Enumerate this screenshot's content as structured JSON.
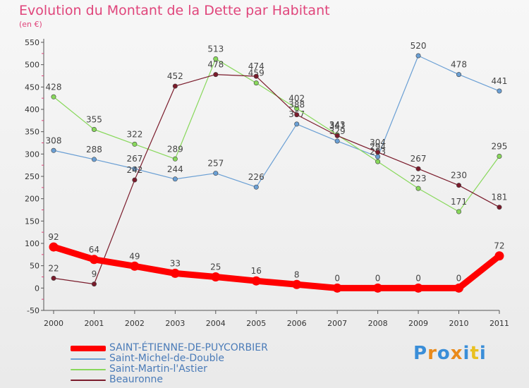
{
  "chart_data": {
    "type": "line",
    "title": "Evolution du Montant de la Dette par Habitant",
    "subtitle": "(en €)",
    "x": [
      "2000",
      "2001",
      "2002",
      "2003",
      "2004",
      "2005",
      "2006",
      "2007",
      "2008",
      "2009",
      "2010",
      "2011"
    ],
    "ylim": [
      -50,
      550
    ],
    "yticks": [
      -50,
      0,
      50,
      100,
      150,
      200,
      250,
      300,
      350,
      400,
      450,
      500,
      550
    ],
    "grid": false,
    "legend_position": "bottom-left",
    "series": [
      {
        "name": "SAINT-ÉTIENNE-DE-PUYCORBIER",
        "color": "#ff0000",
        "values": [
          92,
          64,
          49,
          33,
          25,
          16,
          8,
          0,
          0,
          0,
          0,
          72
        ]
      },
      {
        "name": "Saint-Michel-de-Double",
        "color": "#6a9fd4",
        "values": [
          308,
          288,
          267,
          244,
          257,
          226,
          367,
          329,
          294,
          520,
          478,
          441
        ]
      },
      {
        "name": "Saint-Martin-l'Astier",
        "color": "#88d85b",
        "values": [
          428,
          355,
          322,
          289,
          513,
          459,
          402,
          343,
          283,
          223,
          171,
          295
        ]
      },
      {
        "name": "Beauronne",
        "color": "#7a1b2b",
        "values": [
          22,
          9,
          242,
          452,
          478,
          474,
          388,
          341,
          304,
          267,
          230,
          181
        ]
      }
    ]
  },
  "logo": {
    "text": "Proxiti",
    "letter_colors": [
      "#3a8ed8",
      "#ea8a1a",
      "#3a8ed8",
      "#ea8a1a",
      "#3a8ed8",
      "#e9c020",
      "#3a8ed8"
    ]
  }
}
